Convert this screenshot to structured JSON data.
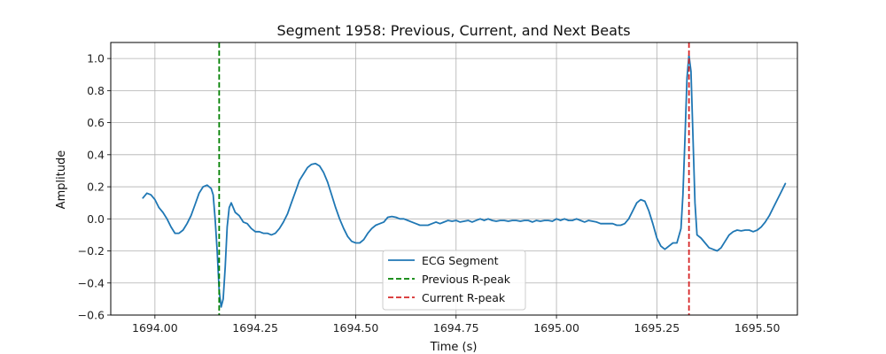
{
  "chart_data": {
    "type": "line",
    "title": "Segment 1958: Previous, Current, and Next Beats",
    "xlabel": "Time (s)",
    "ylabel": "Amplitude",
    "xlim": [
      1693.89,
      1695.6
    ],
    "ylim": [
      -0.6,
      1.1
    ],
    "x_ticks": [
      1694.0,
      1694.25,
      1694.5,
      1694.75,
      1695.0,
      1695.25,
      1695.5
    ],
    "x_tick_labels": [
      "1694.00",
      "1694.25",
      "1694.50",
      "1694.75",
      "1695.00",
      "1695.25",
      "1695.50"
    ],
    "y_ticks": [
      -0.6,
      -0.4,
      -0.2,
      0.0,
      0.2,
      0.4,
      0.6,
      0.8,
      1.0
    ],
    "y_tick_labels": [
      "−0.6",
      "−0.4",
      "−0.2",
      "0.0",
      "0.2",
      "0.4",
      "0.6",
      "0.8",
      "1.0"
    ],
    "grid": true,
    "legend_position": "bottom-center",
    "series": [
      {
        "name": "ECG Segment",
        "color": "#1f77b4",
        "style": "solid",
        "points": [
          [
            1693.97,
            0.13
          ],
          [
            1693.98,
            0.16
          ],
          [
            1693.99,
            0.15
          ],
          [
            1694.0,
            0.12
          ],
          [
            1694.01,
            0.07
          ],
          [
            1694.02,
            0.04
          ],
          [
            1694.03,
            0.0
          ],
          [
            1694.04,
            -0.05
          ],
          [
            1694.05,
            -0.09
          ],
          [
            1694.06,
            -0.09
          ],
          [
            1694.07,
            -0.07
          ],
          [
            1694.08,
            -0.03
          ],
          [
            1694.09,
            0.02
          ],
          [
            1694.1,
            0.09
          ],
          [
            1694.11,
            0.16
          ],
          [
            1694.12,
            0.2
          ],
          [
            1694.13,
            0.21
          ],
          [
            1694.14,
            0.19
          ],
          [
            1694.145,
            0.15
          ],
          [
            1694.15,
            0.0
          ],
          [
            1694.155,
            -0.2
          ],
          [
            1694.16,
            -0.45
          ],
          [
            1694.165,
            -0.55
          ],
          [
            1694.17,
            -0.5
          ],
          [
            1694.175,
            -0.3
          ],
          [
            1694.18,
            -0.05
          ],
          [
            1694.185,
            0.07
          ],
          [
            1694.19,
            0.1
          ],
          [
            1694.2,
            0.04
          ],
          [
            1694.21,
            0.02
          ],
          [
            1694.22,
            -0.02
          ],
          [
            1694.23,
            -0.03
          ],
          [
            1694.24,
            -0.06
          ],
          [
            1694.25,
            -0.08
          ],
          [
            1694.26,
            -0.08
          ],
          [
            1694.27,
            -0.09
          ],
          [
            1694.28,
            -0.09
          ],
          [
            1694.29,
            -0.1
          ],
          [
            1694.3,
            -0.09
          ],
          [
            1694.31,
            -0.06
          ],
          [
            1694.32,
            -0.02
          ],
          [
            1694.33,
            0.03
          ],
          [
            1694.34,
            0.1
          ],
          [
            1694.35,
            0.17
          ],
          [
            1694.36,
            0.24
          ],
          [
            1694.37,
            0.28
          ],
          [
            1694.38,
            0.32
          ],
          [
            1694.39,
            0.34
          ],
          [
            1694.4,
            0.345
          ],
          [
            1694.41,
            0.33
          ],
          [
            1694.42,
            0.29
          ],
          [
            1694.43,
            0.23
          ],
          [
            1694.44,
            0.15
          ],
          [
            1694.45,
            0.07
          ],
          [
            1694.46,
            0.0
          ],
          [
            1694.47,
            -0.06
          ],
          [
            1694.48,
            -0.11
          ],
          [
            1694.49,
            -0.14
          ],
          [
            1694.5,
            -0.15
          ],
          [
            1694.51,
            -0.15
          ],
          [
            1694.52,
            -0.13
          ],
          [
            1694.53,
            -0.09
          ],
          [
            1694.54,
            -0.06
          ],
          [
            1694.55,
            -0.04
          ],
          [
            1694.56,
            -0.03
          ],
          [
            1694.57,
            -0.02
          ],
          [
            1694.58,
            0.01
          ],
          [
            1694.59,
            0.015
          ],
          [
            1694.6,
            0.01
          ],
          [
            1694.61,
            0.0
          ],
          [
            1694.62,
            0.0
          ],
          [
            1694.63,
            -0.01
          ],
          [
            1694.64,
            -0.02
          ],
          [
            1694.65,
            -0.03
          ],
          [
            1694.66,
            -0.04
          ],
          [
            1694.67,
            -0.04
          ],
          [
            1694.68,
            -0.04
          ],
          [
            1694.69,
            -0.03
          ],
          [
            1694.7,
            -0.02
          ],
          [
            1694.71,
            -0.03
          ],
          [
            1694.72,
            -0.02
          ],
          [
            1694.73,
            -0.01
          ],
          [
            1694.74,
            -0.015
          ],
          [
            1694.75,
            -0.01
          ],
          [
            1694.76,
            -0.02
          ],
          [
            1694.77,
            -0.015
          ],
          [
            1694.78,
            -0.01
          ],
          [
            1694.79,
            -0.02
          ],
          [
            1694.8,
            -0.01
          ],
          [
            1694.81,
            0.0
          ],
          [
            1694.82,
            -0.01
          ],
          [
            1694.83,
            0.0
          ],
          [
            1694.84,
            -0.01
          ],
          [
            1694.85,
            -0.015
          ],
          [
            1694.86,
            -0.01
          ],
          [
            1694.87,
            -0.01
          ],
          [
            1694.88,
            -0.015
          ],
          [
            1694.89,
            -0.01
          ],
          [
            1694.9,
            -0.01
          ],
          [
            1694.91,
            -0.015
          ],
          [
            1694.92,
            -0.01
          ],
          [
            1694.93,
            -0.01
          ],
          [
            1694.94,
            -0.02
          ],
          [
            1694.95,
            -0.01
          ],
          [
            1694.96,
            -0.015
          ],
          [
            1694.97,
            -0.01
          ],
          [
            1694.98,
            -0.01
          ],
          [
            1694.99,
            -0.015
          ],
          [
            1695.0,
            0.0
          ],
          [
            1695.01,
            -0.01
          ],
          [
            1695.02,
            0.0
          ],
          [
            1695.03,
            -0.01
          ],
          [
            1695.04,
            -0.01
          ],
          [
            1695.05,
            0.0
          ],
          [
            1695.06,
            -0.01
          ],
          [
            1695.07,
            -0.02
          ],
          [
            1695.08,
            -0.01
          ],
          [
            1695.09,
            -0.015
          ],
          [
            1695.1,
            -0.02
          ],
          [
            1695.11,
            -0.03
          ],
          [
            1695.12,
            -0.03
          ],
          [
            1695.13,
            -0.03
          ],
          [
            1695.14,
            -0.03
          ],
          [
            1695.15,
            -0.04
          ],
          [
            1695.16,
            -0.04
          ],
          [
            1695.17,
            -0.03
          ],
          [
            1695.18,
            0.0
          ],
          [
            1695.19,
            0.05
          ],
          [
            1695.2,
            0.1
          ],
          [
            1695.21,
            0.12
          ],
          [
            1695.22,
            0.11
          ],
          [
            1695.23,
            0.05
          ],
          [
            1695.24,
            -0.03
          ],
          [
            1695.25,
            -0.12
          ],
          [
            1695.26,
            -0.17
          ],
          [
            1695.27,
            -0.19
          ],
          [
            1695.28,
            -0.17
          ],
          [
            1695.29,
            -0.15
          ],
          [
            1695.3,
            -0.15
          ],
          [
            1695.31,
            -0.06
          ],
          [
            1695.315,
            0.15
          ],
          [
            1695.32,
            0.5
          ],
          [
            1695.325,
            0.88
          ],
          [
            1695.33,
            1.02
          ],
          [
            1695.335,
            0.92
          ],
          [
            1695.34,
            0.5
          ],
          [
            1695.345,
            0.1
          ],
          [
            1695.35,
            -0.1
          ],
          [
            1695.36,
            -0.12
          ],
          [
            1695.37,
            -0.15
          ],
          [
            1695.38,
            -0.18
          ],
          [
            1695.39,
            -0.19
          ],
          [
            1695.4,
            -0.2
          ],
          [
            1695.41,
            -0.18
          ],
          [
            1695.42,
            -0.14
          ],
          [
            1695.43,
            -0.1
          ],
          [
            1695.44,
            -0.08
          ],
          [
            1695.45,
            -0.07
          ],
          [
            1695.46,
            -0.075
          ],
          [
            1695.47,
            -0.07
          ],
          [
            1695.48,
            -0.07
          ],
          [
            1695.49,
            -0.08
          ],
          [
            1695.5,
            -0.07
          ],
          [
            1695.51,
            -0.05
          ],
          [
            1695.52,
            -0.02
          ],
          [
            1695.53,
            0.02
          ],
          [
            1695.54,
            0.07
          ],
          [
            1695.55,
            0.12
          ],
          [
            1695.56,
            0.17
          ],
          [
            1695.57,
            0.22
          ]
        ]
      },
      {
        "name": "Previous R-peak",
        "color": "#008000",
        "style": "dashed",
        "vline_x": 1694.16
      },
      {
        "name": "Current R-peak",
        "color": "#d62728",
        "style": "dashed",
        "vline_x": 1695.33
      }
    ]
  }
}
